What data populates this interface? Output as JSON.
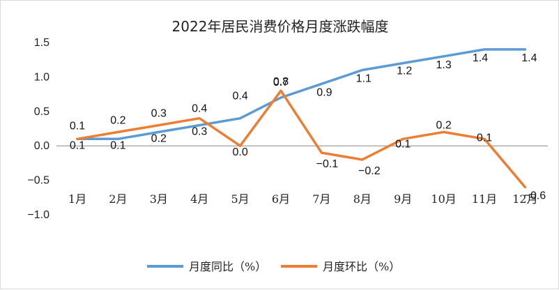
{
  "chart_data": {
    "type": "line",
    "title": "2022年居民消费价格月度涨跌幅度",
    "categories": [
      "1月",
      "2月",
      "3月",
      "4月",
      "5月",
      "6月",
      "7月",
      "8月",
      "9月",
      "10月",
      "11月",
      "12月"
    ],
    "y_ticks": [
      "1.5",
      "1.0",
      "0.5",
      "0.0",
      "−0.5",
      "−1.0"
    ],
    "ylim": [
      -1.0,
      1.5
    ],
    "series": [
      {
        "name": "月度同比（%）",
        "color": "#5b9bd5",
        "values": [
          0.1,
          0.1,
          0.2,
          0.3,
          0.4,
          0.7,
          0.9,
          1.1,
          1.2,
          1.3,
          1.4,
          1.4
        ],
        "labels": [
          "0.1",
          "0.1",
          "0.2",
          "0.3",
          "0.4",
          "0.7",
          "0.9",
          "1.1",
          "1.2",
          "1.3",
          "1.4",
          "1.4"
        ]
      },
      {
        "name": "月度环比（%）",
        "color": "#ed7d31",
        "values": [
          0.1,
          0.2,
          0.3,
          0.4,
          0.0,
          0.8,
          -0.1,
          -0.2,
          0.1,
          0.2,
          0.1,
          -0.6
        ],
        "labels": [
          "0.1",
          "0.2",
          "0.3",
          "0.4",
          "0.0",
          "0.8",
          "−0.1",
          "−0.2",
          "0.1",
          "0.2",
          "0.1",
          "−0.6"
        ]
      }
    ],
    "legend_position": "bottom",
    "grid": false
  }
}
